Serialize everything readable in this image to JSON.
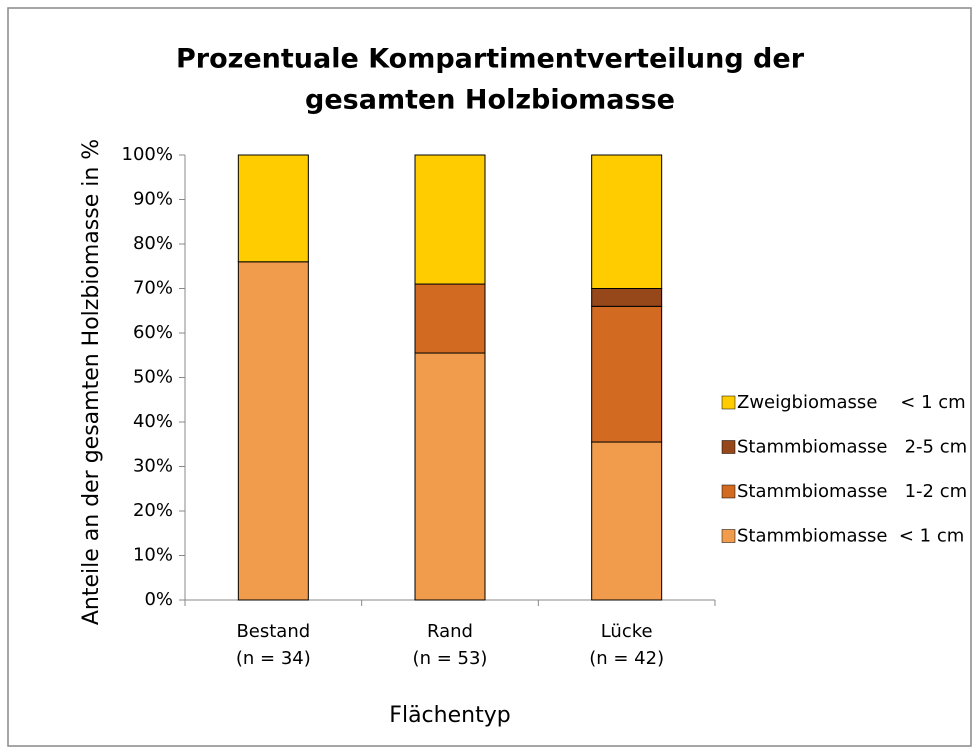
{
  "chart_data": {
    "type": "stacked_bar",
    "title": [
      "Prozentuale Kompartimentverteilung der",
      "gesamten Holzbiomasse"
    ],
    "y_label": "Anteile an der gesamten Holzbiomasse in %",
    "x_label": "Flächentyp",
    "categories": [
      [
        "Bestand",
        "(n = 34)"
      ],
      [
        "Rand",
        "(n = 53)"
      ],
      [
        "Lücke",
        "(n = 42)"
      ]
    ],
    "series": [
      {
        "name": "Stammbiomasse  < 1 cm",
        "color": "#f09c4c",
        "values": [
          76,
          55.5,
          35.5
        ]
      },
      {
        "name": "Stammbiomasse   1-2 cm",
        "color": "#d26a22",
        "values": [
          0,
          15.5,
          30.5
        ]
      },
      {
        "name": "Stammbiomasse   2-5 cm",
        "color": "#96481a",
        "values": [
          0,
          0,
          4
        ]
      },
      {
        "name": "Zweigbiomasse    < 1 cm",
        "color": "#ffcc00",
        "values": [
          24,
          29,
          30
        ]
      }
    ],
    "ylim": [
      0,
      100
    ],
    "yticks": [
      {
        "value": 0,
        "label": "0%"
      },
      {
        "value": 10,
        "label": "10%"
      },
      {
        "value": 20,
        "label": "20%"
      },
      {
        "value": 30,
        "label": "30%"
      },
      {
        "value": 40,
        "label": "40%"
      },
      {
        "value": 50,
        "label": "50%"
      },
      {
        "value": 60,
        "label": "60%"
      },
      {
        "value": 70,
        "label": "70%"
      },
      {
        "value": 80,
        "label": "80%"
      },
      {
        "value": 90,
        "label": "90%"
      },
      {
        "value": 100,
        "label": "100%"
      }
    ],
    "legend": "right"
  }
}
